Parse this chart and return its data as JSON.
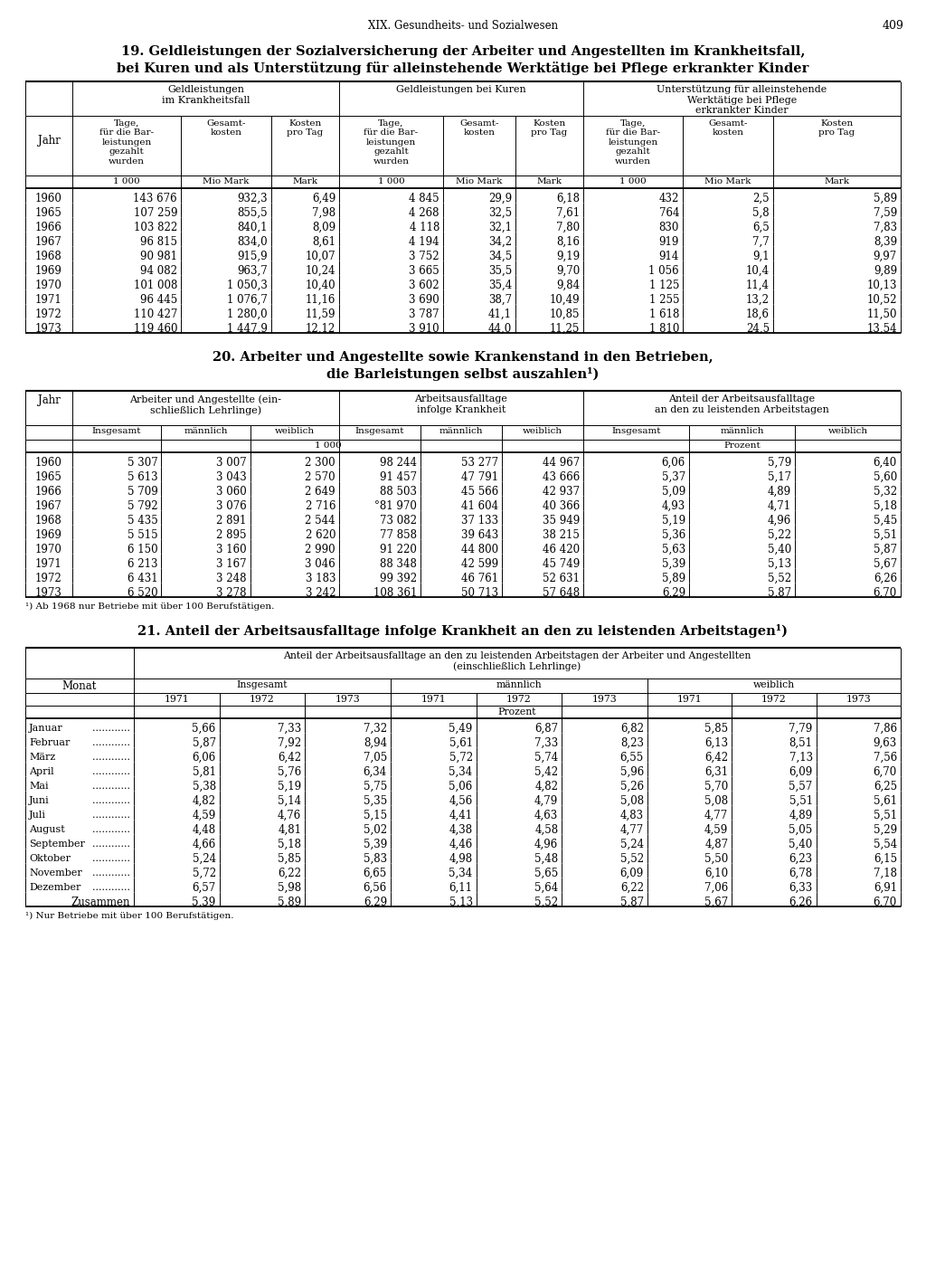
{
  "page_header": "XIX. Gesundheits- und Sozialwesen",
  "page_number": "409",
  "title19": "19. Geldleistungen der Sozialversicherung der Arbeiter und Angestellten im Krankheitsfall,",
  "title19b": "bei Kuren und als Unterstützung für alleinstehende Werktätige bei Pflege erkrankter Kinder",
  "title20": "20. Arbeiter und Angestellte sowie Krankenstand in den Betrieben,",
  "title20b": "die Barleistungen selbst auszahlen¹)",
  "title21": "21. Anteil der Arbeitsausfalltage infolge Krankheit an den zu leistenden Arbeitstagen¹)",
  "footnote20": "¹) Ab 1968 nur Betriebe mit über 100 Berufstätigen.",
  "footnote21": "¹) Nur Betriebe mit über 100 Berufstätigen.",
  "table19_data": [
    [
      "1960",
      "143 676",
      "932,3",
      "6,49",
      "4 845",
      "29,9",
      "6,18",
      "432",
      "2,5",
      "5,89"
    ],
    [
      "1965",
      "107 259",
      "855,5",
      "7,98",
      "4 268",
      "32,5",
      "7,61",
      "764",
      "5,8",
      "7,59"
    ],
    [
      "1966",
      "103 822",
      "840,1",
      "8,09",
      "4 118",
      "32,1",
      "7,80",
      "830",
      "6,5",
      "7,83"
    ],
    [
      "1967",
      "96 815",
      "834,0",
      "8,61",
      "4 194",
      "34,2",
      "8,16",
      "919",
      "7,7",
      "8,39"
    ],
    [
      "1968",
      "90 981",
      "915,9",
      "10,07",
      "3 752",
      "34,5",
      "9,19",
      "914",
      "9,1",
      "9,97"
    ],
    [
      "1969",
      "94 082",
      "963,7",
      "10,24",
      "3 665",
      "35,5",
      "9,70",
      "1 056",
      "10,4",
      "9,89"
    ],
    [
      "1970",
      "101 008",
      "1 050,3",
      "10,40",
      "3 602",
      "35,4",
      "9,84",
      "1 125",
      "11,4",
      "10,13"
    ],
    [
      "1971",
      "96 445",
      "1 076,7",
      "11,16",
      "3 690",
      "38,7",
      "10,49",
      "1 255",
      "13,2",
      "10,52"
    ],
    [
      "1972",
      "110 427",
      "1 280,0",
      "11,59",
      "3 787",
      "41,1",
      "10,85",
      "1 618",
      "18,6",
      "11,50"
    ],
    [
      "1973",
      "119 460",
      "1 447,9",
      "12,12",
      "3 910",
      "44,0",
      "11,25",
      "1 810",
      "24,5",
      "13,54"
    ]
  ],
  "table20_data": [
    [
      "1960",
      "5 307",
      "3 007",
      "2 300",
      "98 244",
      "53 277",
      "44 967",
      "6,06",
      "5,79",
      "6,40"
    ],
    [
      "1965",
      "5 613",
      "3 043",
      "2 570",
      "91 457",
      "47 791",
      "43 666",
      "5,37",
      "5,17",
      "5,60"
    ],
    [
      "1966",
      "5 709",
      "3 060",
      "2 649",
      "88 503",
      "45 566",
      "42 937",
      "5,09",
      "4,89",
      "5,32"
    ],
    [
      "1967",
      "5 792",
      "3 076",
      "2 716",
      "°81 970",
      "41 604",
      "40 366",
      "4,93",
      "4,71",
      "5,18"
    ],
    [
      "1968",
      "5 435",
      "2 891",
      "2 544",
      "73 082",
      "37 133",
      "35 949",
      "5,19",
      "4,96",
      "5,45"
    ],
    [
      "1969",
      "5 515",
      "2 895",
      "2 620",
      "77 858",
      "39 643",
      "38 215",
      "5,36",
      "5,22",
      "5,51"
    ],
    [
      "1970",
      "6 150",
      "3 160",
      "2 990",
      "91 220",
      "44 800",
      "46 420",
      "5,63",
      "5,40",
      "5,87"
    ],
    [
      "1971",
      "6 213",
      "3 167",
      "3 046",
      "88 348",
      "42 599",
      "45 749",
      "5,39",
      "5,13",
      "5,67"
    ],
    [
      "1972",
      "6 431",
      "3 248",
      "3 183",
      "99 392",
      "46 761",
      "52 631",
      "5,89",
      "5,52",
      "6,26"
    ],
    [
      "1973",
      "6 520",
      "3 278",
      "3 242",
      "108 361",
      "50 713",
      "57 648",
      "6,29",
      "5,87",
      "6,70"
    ]
  ],
  "table21_months": [
    "Januar",
    "Februar",
    "März",
    "April",
    "Mai",
    "Juni",
    "Juli",
    "August",
    "September",
    "Oktober",
    "November",
    "Dezember",
    "Zusammen"
  ],
  "table21_insgesamt": [
    [
      "5,66",
      "7,33",
      "7,32"
    ],
    [
      "5,87",
      "7,92",
      "8,94"
    ],
    [
      "6,06",
      "6,42",
      "7,05"
    ],
    [
      "5,81",
      "5,76",
      "6,34"
    ],
    [
      "5,38",
      "5,19",
      "5,75"
    ],
    [
      "4,82",
      "5,14",
      "5,35"
    ],
    [
      "4,59",
      "4,76",
      "5,15"
    ],
    [
      "4,48",
      "4,81",
      "5,02"
    ],
    [
      "4,66",
      "5,18",
      "5,39"
    ],
    [
      "5,24",
      "5,85",
      "5,83"
    ],
    [
      "5,72",
      "6,22",
      "6,65"
    ],
    [
      "6,57",
      "5,98",
      "6,56"
    ],
    [
      "5,39",
      "5,89",
      "6,29"
    ]
  ],
  "table21_maennlich": [
    [
      "5,49",
      "6,87",
      "6,82"
    ],
    [
      "5,61",
      "7,33",
      "8,23"
    ],
    [
      "5,72",
      "5,74",
      "6,55"
    ],
    [
      "5,34",
      "5,42",
      "5,96"
    ],
    [
      "5,06",
      "4,82",
      "5,26"
    ],
    [
      "4,56",
      "4,79",
      "5,08"
    ],
    [
      "4,41",
      "4,63",
      "4,83"
    ],
    [
      "4,38",
      "4,58",
      "4,77"
    ],
    [
      "4,46",
      "4,96",
      "5,24"
    ],
    [
      "4,98",
      "5,48",
      "5,52"
    ],
    [
      "5,34",
      "5,65",
      "6,09"
    ],
    [
      "6,11",
      "5,64",
      "6,22"
    ],
    [
      "5,13",
      "5,52",
      "5,87"
    ]
  ],
  "table21_weiblich": [
    [
      "5,85",
      "7,79",
      "7,86"
    ],
    [
      "6,13",
      "8,51",
      "9,63"
    ],
    [
      "6,42",
      "7,13",
      "7,56"
    ],
    [
      "6,31",
      "6,09",
      "6,70"
    ],
    [
      "5,70",
      "5,57",
      "6,25"
    ],
    [
      "5,08",
      "5,51",
      "5,61"
    ],
    [
      "4,77",
      "4,89",
      "5,51"
    ],
    [
      "4,59",
      "5,05",
      "5,29"
    ],
    [
      "4,87",
      "5,40",
      "5,54"
    ],
    [
      "5,50",
      "6,23",
      "6,15"
    ],
    [
      "6,10",
      "6,78",
      "7,18"
    ],
    [
      "7,06",
      "6,33",
      "6,91"
    ],
    [
      "5,67",
      "6,26",
      "6,70"
    ]
  ],
  "bg_color": "#ffffff"
}
